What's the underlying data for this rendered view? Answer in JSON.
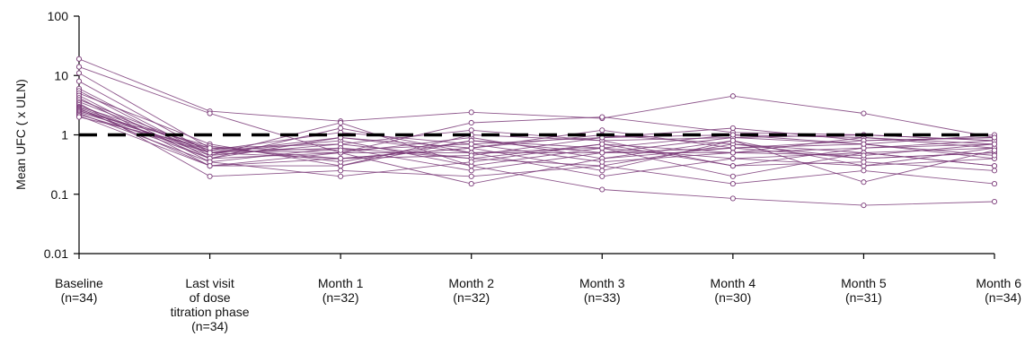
{
  "chart_data": {
    "type": "line",
    "title": "",
    "xlabel": "",
    "ylabel": "Mean UFC ( x ULN)",
    "yscale": "log",
    "ylim": [
      0.01,
      100
    ],
    "y_ticks": [
      "0.01",
      "0.1",
      "1",
      "10",
      "100"
    ],
    "reference_line": {
      "y": 1,
      "style": "dashed",
      "color": "#000000"
    },
    "series_color": "#7a3a78",
    "categories": [
      [
        "Baseline",
        "(n=34)"
      ],
      [
        "Last visit",
        "of dose",
        "titration phase",
        "(n=34)"
      ],
      [
        "Month 1",
        "(n=32)"
      ],
      [
        "Month 2",
        "(n=32)"
      ],
      [
        "Month 3",
        "(n=33)"
      ],
      [
        "Month 4",
        "(n=30)"
      ],
      [
        "Month 5",
        "(n=31)"
      ],
      [
        "Month 6",
        "(n=34)"
      ]
    ],
    "series": [
      {
        "values": [
          19.0,
          2.5,
          1.7,
          2.4,
          1.9,
          4.5,
          2.3,
          0.9
        ]
      },
      {
        "values": [
          14.0,
          2.3,
          0.5,
          1.6,
          2.0,
          1.1,
          1.0,
          0.8
        ]
      },
      {
        "values": [
          11.0,
          0.6,
          0.7,
          1.2,
          0.8,
          0.9,
          0.7,
          1.0
        ]
      },
      {
        "values": [
          8.0,
          0.5,
          0.4,
          0.6,
          1.0,
          0.7,
          0.5,
          0.6
        ]
      },
      {
        "values": [
          6.0,
          0.45,
          1.6,
          0.3,
          0.12,
          0.085,
          0.065,
          0.075
        ]
      },
      {
        "values": [
          5.5,
          0.4,
          0.9,
          0.5,
          0.6,
          1.0,
          0.9,
          0.7
        ]
      },
      {
        "values": [
          5.0,
          0.7,
          0.3,
          0.8,
          0.5,
          0.6,
          0.4,
          0.5
        ]
      },
      {
        "values": [
          4.6,
          0.35,
          0.6,
          0.4,
          0.7,
          0.5,
          0.6,
          0.8
        ]
      },
      {
        "values": [
          4.2,
          0.3,
          0.5,
          0.9,
          0.4,
          0.8,
          0.3,
          0.4
        ]
      },
      {
        "values": [
          3.9,
          0.55,
          1.1,
          0.7,
          0.9,
          1.3,
          0.8,
          0.9
        ]
      },
      {
        "values": [
          3.6,
          0.5,
          0.8,
          0.3,
          0.6,
          0.4,
          0.5,
          0.3
        ]
      },
      {
        "values": [
          3.4,
          0.2,
          0.25,
          0.2,
          0.3,
          0.15,
          0.25,
          0.15
        ]
      },
      {
        "values": [
          3.2,
          0.4,
          0.5,
          0.5,
          0.5,
          0.5,
          0.9,
          0.6
        ]
      },
      {
        "values": [
          3.0,
          0.6,
          0.4,
          0.6,
          1.2,
          0.6,
          0.7,
          0.4
        ]
      },
      {
        "values": [
          2.9,
          0.45,
          0.7,
          0.4,
          0.3,
          0.7,
          0.4,
          0.5
        ]
      },
      {
        "values": [
          2.8,
          0.3,
          0.3,
          1.0,
          0.8,
          0.3,
          0.6,
          0.7
        ]
      },
      {
        "values": [
          2.7,
          0.5,
          0.6,
          0.25,
          0.5,
          0.9,
          1.0,
          0.8
        ]
      },
      {
        "values": [
          2.6,
          0.4,
          1.3,
          0.5,
          0.2,
          0.4,
          0.3,
          0.6
        ]
      },
      {
        "values": [
          2.5,
          0.65,
          0.35,
          0.8,
          0.6,
          0.2,
          0.5,
          0.3
        ]
      },
      {
        "values": [
          2.4,
          0.55,
          0.5,
          0.15,
          0.4,
          0.6,
          0.8,
          0.9
        ]
      },
      {
        "values": [
          2.3,
          0.35,
          0.2,
          0.35,
          0.7,
          0.3,
          0.35,
          0.25
        ]
      },
      {
        "values": [
          2.2,
          0.5,
          0.9,
          0.6,
          0.25,
          0.8,
          0.16,
          0.55
        ]
      },
      {
        "values": [
          2.1,
          0.3,
          0.4,
          0.45,
          0.9,
          1.0,
          0.7,
          0.45
        ]
      },
      {
        "values": [
          2.0,
          0.6,
          0.55,
          0.7,
          0.35,
          0.5,
          0.45,
          0.7
        ]
      }
    ]
  }
}
